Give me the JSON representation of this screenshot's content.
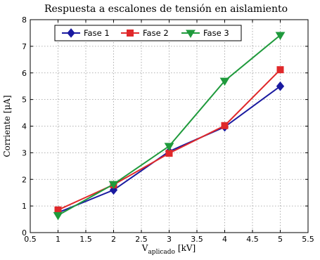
{
  "chart_data": {
    "type": "line",
    "title": "Respuesta a escalones de tensión en aislamiento",
    "xlabel_main": "V",
    "xlabel_sub": "aplicado",
    "xlabel_unit": "[kV]",
    "ylabel": "Corriente [μA]",
    "xlim": [
      0.5,
      5.5
    ],
    "ylim": [
      0,
      8
    ],
    "xticks": [
      0.5,
      1,
      1.5,
      2,
      2.5,
      3,
      3.5,
      4,
      4.5,
      5,
      5.5
    ],
    "xtick_labels": [
      "0.5",
      "1",
      "1.5",
      "2",
      "2.5",
      "3",
      "3.5",
      "4",
      "4.5",
      "5",
      "5.5"
    ],
    "yticks": [
      0,
      1,
      2,
      3,
      4,
      5,
      6,
      7,
      8
    ],
    "ytick_labels": [
      "0",
      "1",
      "2",
      "3",
      "4",
      "5",
      "6",
      "7",
      "8"
    ],
    "grid": true,
    "legend_position": "top-left",
    "x": [
      1,
      2,
      3,
      4,
      5
    ],
    "series": [
      {
        "name": "Fase 1",
        "color": "#1a1aa0",
        "marker": "diamond",
        "values": [
          0.75,
          1.6,
          3.05,
          3.97,
          5.5
        ]
      },
      {
        "name": "Fase 2",
        "color": "#e0282a",
        "marker": "square",
        "values": [
          0.85,
          1.8,
          2.98,
          4.02,
          6.12
        ]
      },
      {
        "name": "Fase 3",
        "color": "#1f9a3c",
        "marker": "triangle-down",
        "values": [
          0.65,
          1.82,
          3.25,
          5.7,
          7.42
        ]
      }
    ]
  }
}
